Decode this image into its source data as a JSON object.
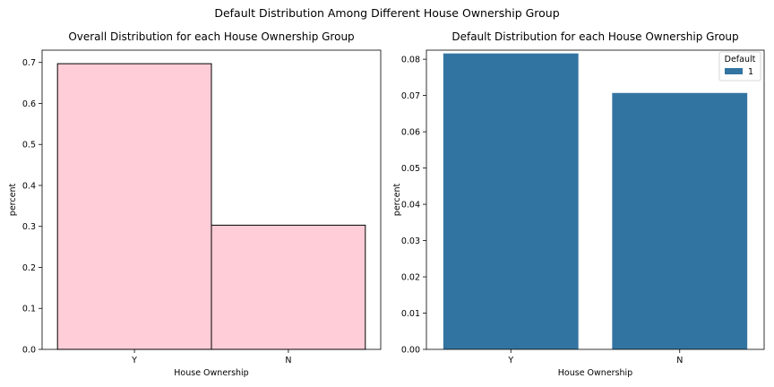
{
  "figure": {
    "suptitle": "Default Distribution Among Different House Ownership Group"
  },
  "chart_data": [
    {
      "type": "bar",
      "title": "Overall Distribution for each House Ownership Group",
      "xlabel": "House Ownership",
      "ylabel": "percent",
      "categories": [
        "Y",
        "N"
      ],
      "values": [
        0.697,
        0.303
      ],
      "ylim": [
        0,
        0.73
      ],
      "yticks": [
        0.0,
        0.1,
        0.2,
        0.3,
        0.4,
        0.5,
        0.6,
        0.7
      ],
      "ytick_labels": [
        "0.0",
        "0.1",
        "0.2",
        "0.3",
        "0.4",
        "0.5",
        "0.6",
        "0.7"
      ],
      "bar_color": "#ffcdd7",
      "bar_edge_color": "#000000",
      "grid": false
    },
    {
      "type": "bar",
      "title": "Default Distribution for each House Ownership Group",
      "xlabel": "House Ownership",
      "ylabel": "percent",
      "categories": [
        "Y",
        "N"
      ],
      "values": [
        0.0816,
        0.0707
      ],
      "ylim": [
        0,
        0.0825
      ],
      "yticks": [
        0.0,
        0.01,
        0.02,
        0.03,
        0.04,
        0.05,
        0.06,
        0.07,
        0.08
      ],
      "ytick_labels": [
        "0.00",
        "0.01",
        "0.02",
        "0.03",
        "0.04",
        "0.05",
        "0.06",
        "0.07",
        "0.08"
      ],
      "bar_color": "#3274a1",
      "grid": false,
      "legend": {
        "title": "Default",
        "placement": "top-right",
        "entries": [
          {
            "label": "1",
            "color": "#3274a1"
          }
        ]
      }
    }
  ]
}
